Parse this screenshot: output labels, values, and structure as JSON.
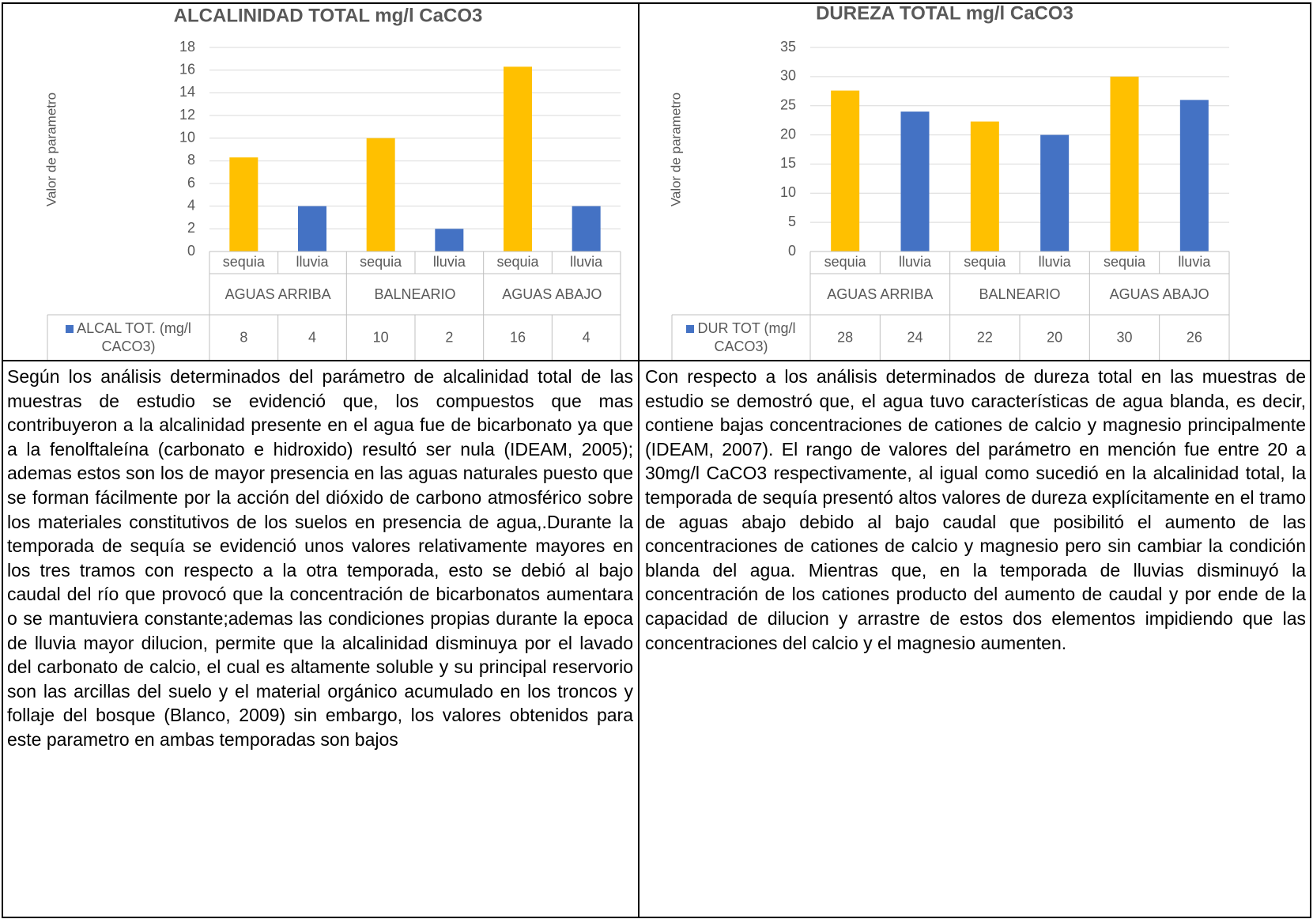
{
  "chart_data": [
    {
      "type": "bar",
      "title": "ALCALINIDAD  TOTAL mg/l CaCO3",
      "y_label": "Valor de parametro",
      "categories": [
        "sequia",
        "lluvia",
        "sequia",
        "lluvia",
        "sequia",
        "lluvia"
      ],
      "groups": [
        "AGUAS ARRIBA",
        "BALNEARIO",
        "AGUAS ABAJO"
      ],
      "series": [
        {
          "name": "ALCAL TOT. (mg/l CACO3)",
          "color": "#4472C4",
          "values": [
            8.3,
            4,
            10,
            2,
            16.3,
            4
          ],
          "value_labels": [
            "8",
            "4",
            "10",
            "2",
            "16",
            "4"
          ],
          "colors": [
            "#FFC000",
            "#4472C4",
            "#FFC000",
            "#4472C4",
            "#FFC000",
            "#4472C4"
          ]
        }
      ],
      "ylim": [
        0,
        18
      ],
      "yticks": [
        0,
        2,
        4,
        6,
        8,
        10,
        12,
        14,
        16,
        18
      ],
      "grid": true
    },
    {
      "type": "bar",
      "title": "DUREZA TOTAL mg/l CaCO3",
      "y_label": "Valor de parametro",
      "categories": [
        "sequia",
        "lluvia",
        "sequia",
        "lluvia",
        "sequia",
        "lluvia"
      ],
      "groups": [
        "AGUAS ARRIBA",
        "BALNEARIO",
        "AGUAS ABAJO"
      ],
      "series": [
        {
          "name": "DUR TOT (mg/l CACO3)",
          "color": "#4472C4",
          "values": [
            27.6,
            24,
            22.3,
            20,
            30,
            26
          ],
          "value_labels": [
            "28",
            "24",
            "22",
            "20",
            "30",
            "26"
          ],
          "colors": [
            "#FFC000",
            "#4472C4",
            "#FFC000",
            "#4472C4",
            "#FFC000",
            "#4472C4"
          ]
        }
      ],
      "ylim": [
        0,
        35
      ],
      "yticks": [
        0,
        5,
        10,
        15,
        20,
        25,
        30,
        35
      ],
      "grid": true
    }
  ],
  "paragraphs": [
    "Según los análisis determinados del parámetro de alcalinidad total de las muestras de estudio se evidenció que, los compuestos que mas contribuyeron a la alcalinidad presente en el agua fue de bicarbonato ya que a la fenolftaleína (carbonato e hidroxido) resultó ser nula (IDEAM, 2005); ademas estos son los de mayor presencia en las aguas naturales puesto que se forman fácilmente por la acción del dióxido de carbono atmosférico sobre los materiales constitutivos de los suelos en presencia de agua,.Durante la temporada de sequía se evidenció unos valores relativamente mayores en los tres tramos con respecto a la otra temporada, esto se debió al bajo caudal del río que provocó que la concentración de bicarbonatos aumentara o se mantuviera constante;ademas las condiciones propias durante la epoca de lluvia mayor dilucion,  permite que la alcalinidad disminuya por el lavado del carbonato de calcio, el cual es altamente soluble y su principal reservorio son las arcillas del suelo y el material orgánico acumulado en los troncos y follaje del bosque (Blanco, 2009) sin embargo, los valores obtenidos para este parametro en ambas temporadas son bajos",
    "Con respecto a los análisis determinados de dureza total en las muestras de estudio se demostró que, el agua tuvo características de agua blanda, es decir, contiene bajas concentraciones de cationes de calcio y magnesio principalmente (IDEAM, 2007). El rango de valores del parámetro en mención fue entre 20 a 30mg/l CaCO3 respectivamente, al igual como sucedió en la alcalinidad total, la temporada de sequía presentó altos valores de dureza explícitamente en el tramo de aguas abajo debido al bajo caudal que posibilitó el aumento de las concentraciones de cationes de calcio y magnesio pero sin cambiar la condición blanda del agua. Mientras que, en la temporada de lluvias disminuyó la concentración de los cationes producto del aumento de caudal y por ende de la capacidad de dilucion y arrastre de estos dos elementos impidiendo que las concentraciones del calcio y el magnesio aumenten."
  ]
}
